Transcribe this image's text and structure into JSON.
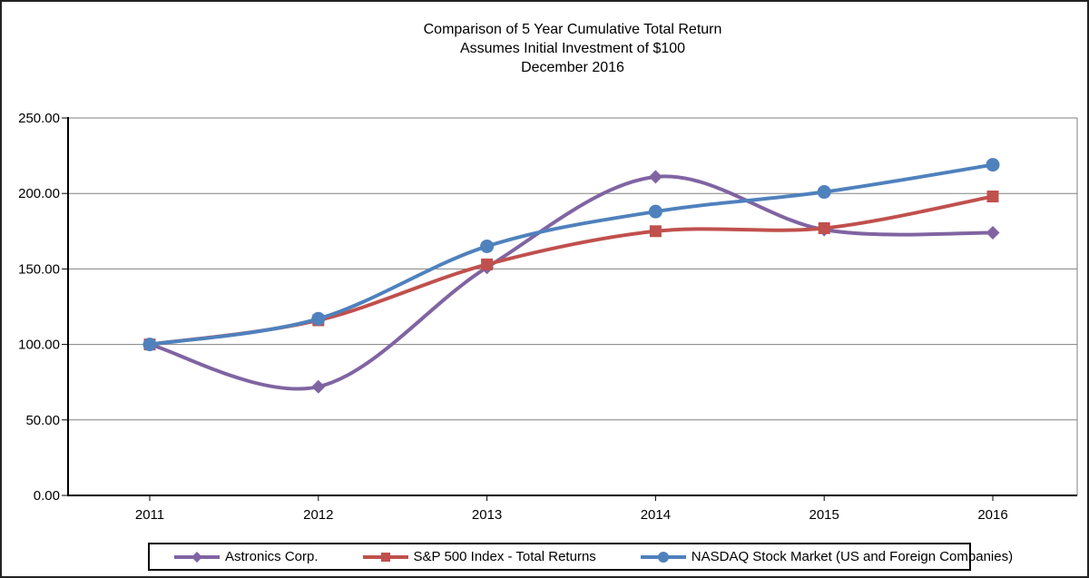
{
  "chart_data": {
    "type": "line",
    "title": "Comparison of 5 Year Cumulative Total Return",
    "title_lines": [
      "Comparison of 5 Year Cumulative Total Return",
      "Assumes Initial Investment of $100",
      "December 2016"
    ],
    "categories": [
      "2011",
      "2012",
      "2013",
      "2014",
      "2015",
      "2016"
    ],
    "series": [
      {
        "name": "Astronics Corp.",
        "color": "#8064A2",
        "marker": "diamond",
        "values": [
          100.0,
          72.0,
          151.0,
          211.0,
          176.0,
          174.0
        ]
      },
      {
        "name": "S&P 500 Index - Total Returns",
        "color": "#C0504D",
        "marker": "square",
        "values": [
          100.0,
          116.0,
          153.0,
          175.0,
          177.0,
          198.0
        ]
      },
      {
        "name": "NASDAQ Stock Market (US and Foreign Companies)",
        "color": "#4F81BD",
        "marker": "circle",
        "values": [
          100.0,
          117.0,
          165.0,
          188.0,
          201.0,
          219.0
        ]
      }
    ],
    "xlabel": "",
    "ylabel": "",
    "ylim": [
      0,
      250
    ],
    "ytick_step": 50,
    "ytick_labels": [
      "0.00",
      "50.00",
      "100.00",
      "150.00",
      "200.00",
      "250.00"
    ],
    "grid": "horizontal",
    "grid_color": "#808080",
    "axis_color": "#000000",
    "legend_position": "bottom",
    "line_smoothing": true
  }
}
